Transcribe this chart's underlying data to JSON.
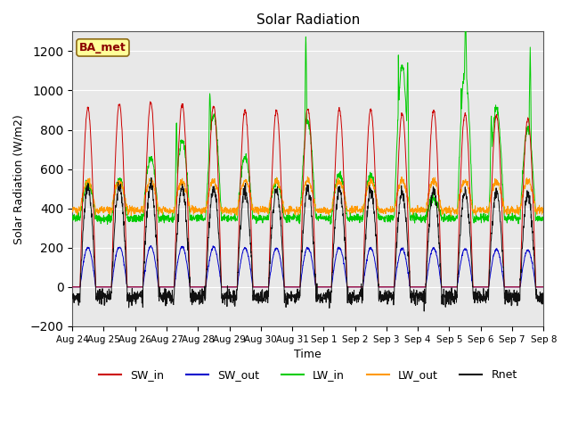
{
  "title": "Solar Radiation",
  "xlabel": "Time",
  "ylabel": "Solar Radiation (W/m2)",
  "ylim": [
    -200,
    1300
  ],
  "yticks": [
    -200,
    0,
    200,
    400,
    600,
    800,
    1000,
    1200
  ],
  "x_labels": [
    "Aug 24",
    "Aug 25",
    "Aug 26",
    "Aug 27",
    "Aug 28",
    "Aug 29",
    "Aug 30",
    "Aug 31",
    "Sep 1",
    "Sep 2",
    "Sep 3",
    "Sep 4",
    "Sep 5",
    "Sep 6",
    "Sep 7",
    "Sep 8"
  ],
  "legend_labels": [
    "SW_in",
    "SW_out",
    "LW_in",
    "LW_out",
    "Rnet"
  ],
  "colors": {
    "SW_in": "#cc0000",
    "SW_out": "#0000cc",
    "LW_in": "#00cc00",
    "LW_out": "#ff9900",
    "Rnet": "#111111"
  },
  "station_label": "BA_met",
  "station_label_color": "#8b0000",
  "station_box_facecolor": "#ffff99",
  "station_box_edgecolor": "#8b6914",
  "bg_color": "#e8e8e8",
  "n_days": 15,
  "pts_per_day": 144
}
